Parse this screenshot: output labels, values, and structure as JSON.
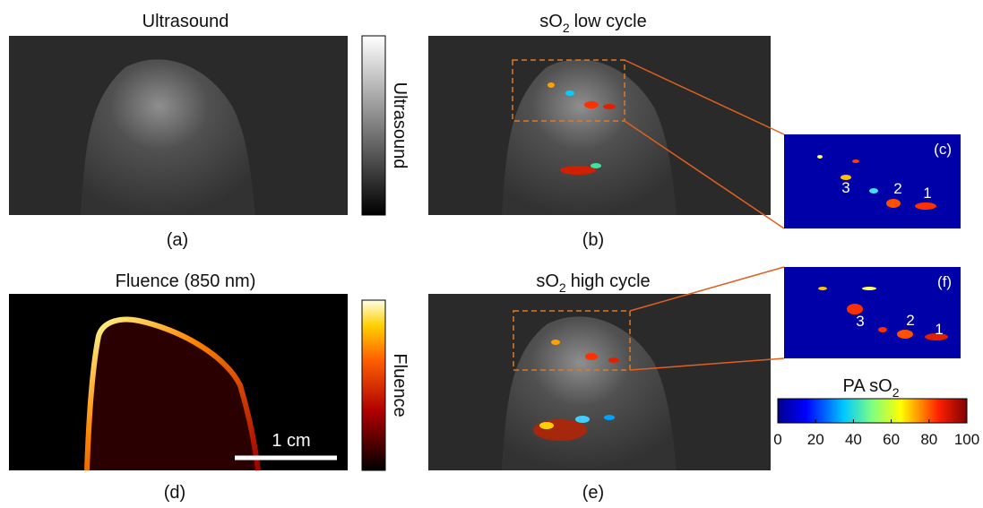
{
  "panel_a": {
    "title": "Ultrasound",
    "label": "(a)",
    "colorbar_label": "Ultrasound"
  },
  "panel_b": {
    "title": "sO",
    "title_sub": "2",
    "title_rest": "low cycle",
    "label": "(b)"
  },
  "panel_c": {
    "label": "(c)",
    "numbers": [
      "3",
      "2",
      "1"
    ]
  },
  "panel_d": {
    "title": "Fluence (850 nm)",
    "label": "(d)",
    "colorbar_label": "Fluence",
    "scale_bar": "1 cm"
  },
  "panel_e": {
    "title": "sO",
    "title_sub": "2",
    "title_rest": "high cycle",
    "label": "(e)"
  },
  "panel_f": {
    "label": "(f)",
    "numbers": [
      "3",
      "2",
      "1"
    ]
  },
  "colorbar": {
    "title": "PA sO",
    "title_sub": "2",
    "lim": [
      0,
      100
    ],
    "ticks": [
      0,
      20,
      40,
      60,
      80,
      100
    ]
  }
}
